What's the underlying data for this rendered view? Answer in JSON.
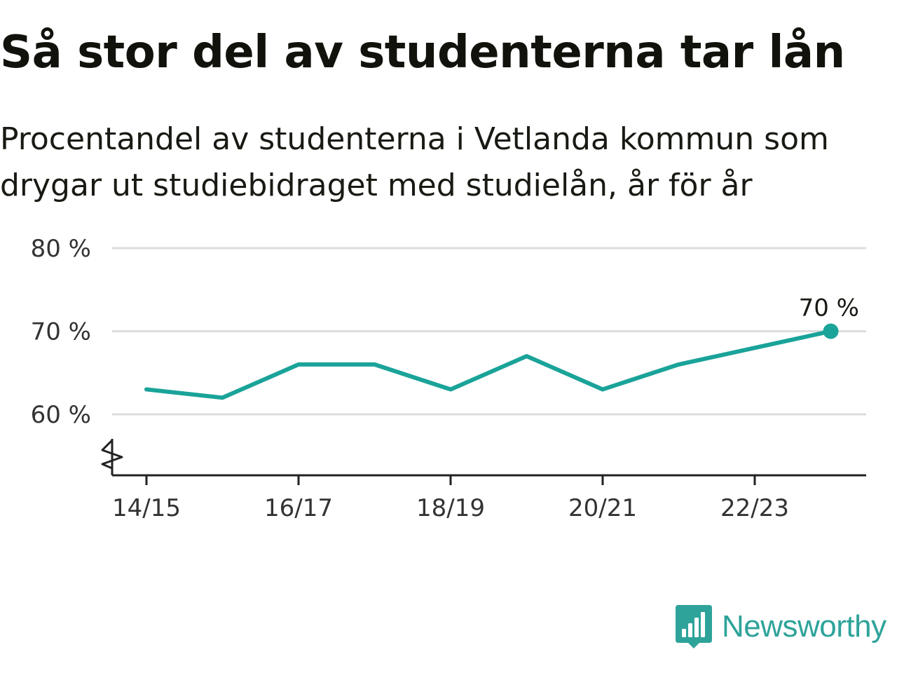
{
  "chart_data": {
    "type": "line",
    "title": "Så stor del av studenterna tar lån",
    "subtitle": "Procentandel av studenterna i Vetlanda kommun som drygar ut studiebidraget med studielån, år för år",
    "x": [
      "14/15",
      "15/16",
      "16/17",
      "17/18",
      "18/19",
      "19/20",
      "20/21",
      "21/22",
      "22/23",
      "23/24"
    ],
    "x_tick_labels": [
      "14/15",
      "16/17",
      "18/19",
      "20/21",
      "22/23"
    ],
    "series": [
      {
        "name": "",
        "values": [
          63,
          62,
          66,
          66,
          63,
          67,
          63,
          66,
          68,
          70
        ],
        "color": "#1aa399"
      }
    ],
    "ylim": [
      53,
      80
    ],
    "y_ticks": [
      60,
      70,
      80
    ],
    "y_tick_labels": [
      "60 %",
      "70 %",
      "80 %"
    ],
    "y_axis_break": true,
    "grid": true,
    "end_label": "70 %"
  },
  "brand": {
    "name": "Newsworthy",
    "logo_icon": "bar-chart-speech-bubble-icon",
    "color": "#2ea39a"
  }
}
